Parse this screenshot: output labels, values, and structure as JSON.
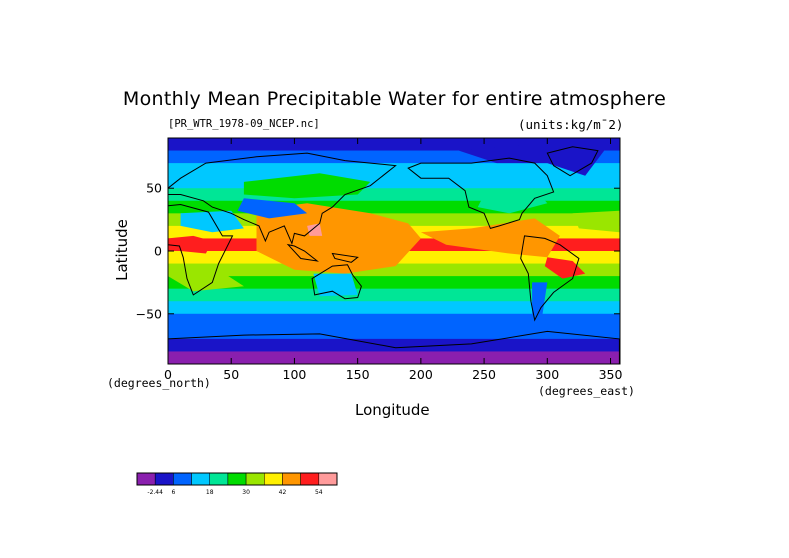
{
  "chart_data": {
    "type": "heatmap",
    "title": "Monthly Mean Precipitable Water for entire atmosphere",
    "source_label": "[PR_WTR_1978-09_NCEP.nc]",
    "units_label": "(units:kg/m^2)",
    "xlabel": "Longitude",
    "ylabel": "Latitude",
    "x_unit": "(degrees_north)",
    "x_unit_secondary": "(degrees_east)",
    "xlim": [
      0,
      357.5
    ],
    "ylim": [
      -90,
      90
    ],
    "x_ticks": [
      0,
      50,
      100,
      150,
      200,
      250,
      300,
      350
    ],
    "x_tick_labels": [
      "0",
      "50",
      "100",
      "150",
      "200",
      "250",
      "300",
      "350"
    ],
    "y_ticks": [
      50,
      0,
      -50
    ],
    "y_tick_labels": [
      "50",
      "0",
      "−50"
    ],
    "zonal_mean_by_latitude": [
      {
        "lat": 90,
        "value": 4
      },
      {
        "lat": 80,
        "value": 7
      },
      {
        "lat": 70,
        "value": 12
      },
      {
        "lat": 60,
        "value": 16
      },
      {
        "lat": 50,
        "value": 20
      },
      {
        "lat": 40,
        "value": 24
      },
      {
        "lat": 30,
        "value": 30
      },
      {
        "lat": 20,
        "value": 40
      },
      {
        "lat": 10,
        "value": 48
      },
      {
        "lat": 0,
        "value": 40
      },
      {
        "lat": -10,
        "value": 35
      },
      {
        "lat": -20,
        "value": 28
      },
      {
        "lat": -30,
        "value": 20
      },
      {
        "lat": -40,
        "value": 15
      },
      {
        "lat": -50,
        "value": 10
      },
      {
        "lat": -60,
        "value": 7
      },
      {
        "lat": -70,
        "value": 3
      },
      {
        "lat": -80,
        "value": 1
      }
    ],
    "colorbar": {
      "colors": [
        "#8a1fae",
        "#1a14c8",
        "#0064ff",
        "#00c8ff",
        "#00e696",
        "#00dc00",
        "#9ae600",
        "#fff000",
        "#ff9600",
        "#ff1e1e",
        "#ff9b9b"
      ],
      "tick_labels": [
        "-2.44",
        "6",
        "18",
        "30",
        "42",
        "54"
      ],
      "tick_index": [
        1,
        2,
        4,
        6,
        8,
        10
      ]
    }
  }
}
